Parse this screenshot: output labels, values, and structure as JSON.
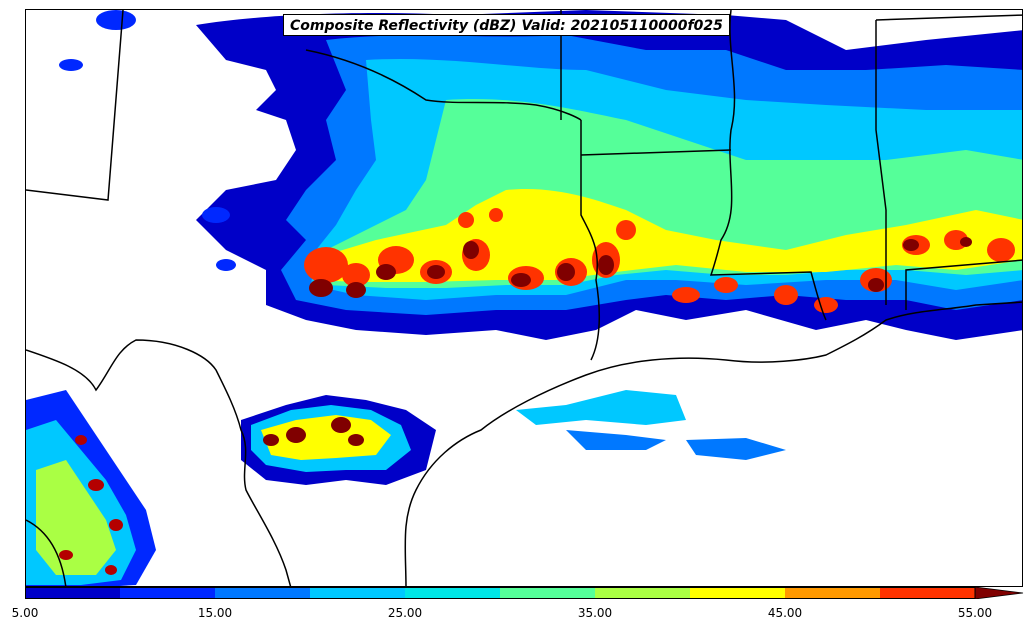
{
  "title": "Composite Reflectivity (dBZ) Valid: 202105110000f025",
  "colorbar": {
    "levels": [
      5,
      10,
      15,
      20,
      25,
      30,
      35,
      40,
      45,
      50,
      55
    ],
    "colors": [
      "#0000c8",
      "#0028ff",
      "#0078ff",
      "#00c8ff",
      "#00e6e6",
      "#55ff99",
      "#aaff44",
      "#ffff00",
      "#ff9900",
      "#ff3300",
      "#b40000",
      "#800000"
    ],
    "tick_labels": [
      "5.00",
      "15.00",
      "25.00",
      "35.00",
      "45.00",
      "55.00"
    ],
    "extend": "max"
  },
  "map": {
    "boundaries": [
      "state-lines",
      "coastline",
      "rivers"
    ],
    "projection": "lambert-conformal"
  }
}
